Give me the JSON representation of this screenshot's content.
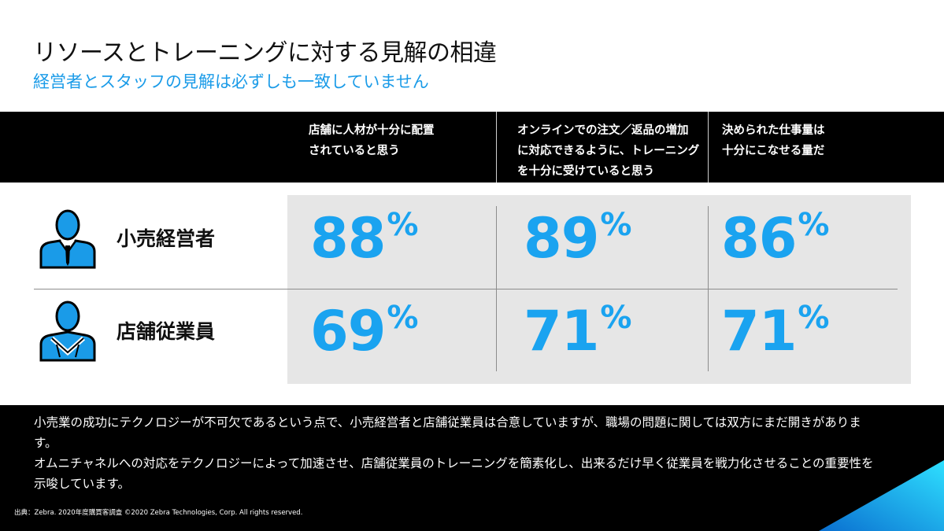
{
  "title": "リソースとトレーニングに対する見解の相違",
  "subtitle": "経営者とスタッフの見解は必ずしも一致していません",
  "columns": [
    {
      "line1": "店舗に人材が十分に配置",
      "line2": "されていると思う",
      "line3": ""
    },
    {
      "line1": "オンラインでの注文／返品の増加",
      "line2": "に対応できるように、トレーニング",
      "line3": "を十分に受けていると思う"
    },
    {
      "line1": "決められた仕事量は",
      "line2": "十分にこなせる量だ",
      "line3": ""
    }
  ],
  "rows": [
    {
      "label": "小売経営者",
      "icon": "manager-person-icon",
      "values": [
        "88",
        "89",
        "86"
      ]
    },
    {
      "label": "店舗従業員",
      "icon": "employee-person-icon",
      "values": [
        "69",
        "71",
        "71"
      ]
    }
  ],
  "percent_sign": "%",
  "bottom": {
    "para1": "小売業の成功にテクノロジーが不可欠であるという点で、小売経営者と店舗従業員は合意していますが、職場の問題に関しては双方にまだ開きがあります。",
    "para2": "オムニチャネルへの対応をテクノロジーによって加速させ、店舗従業員のトレーニングを簡素化し、出来るだけ早く従業員を戦力化させることの重要性を示唆しています。"
  },
  "source": "出典：Zebra. 2020年度購買客調査 ©2020 Zebra Technologies, Corp. All rights reserved.",
  "colors": {
    "accent": "#1aa3f0",
    "icon_blue": "#1a9be8",
    "band": "#000000",
    "data_bg": "#e6e6e6"
  }
}
